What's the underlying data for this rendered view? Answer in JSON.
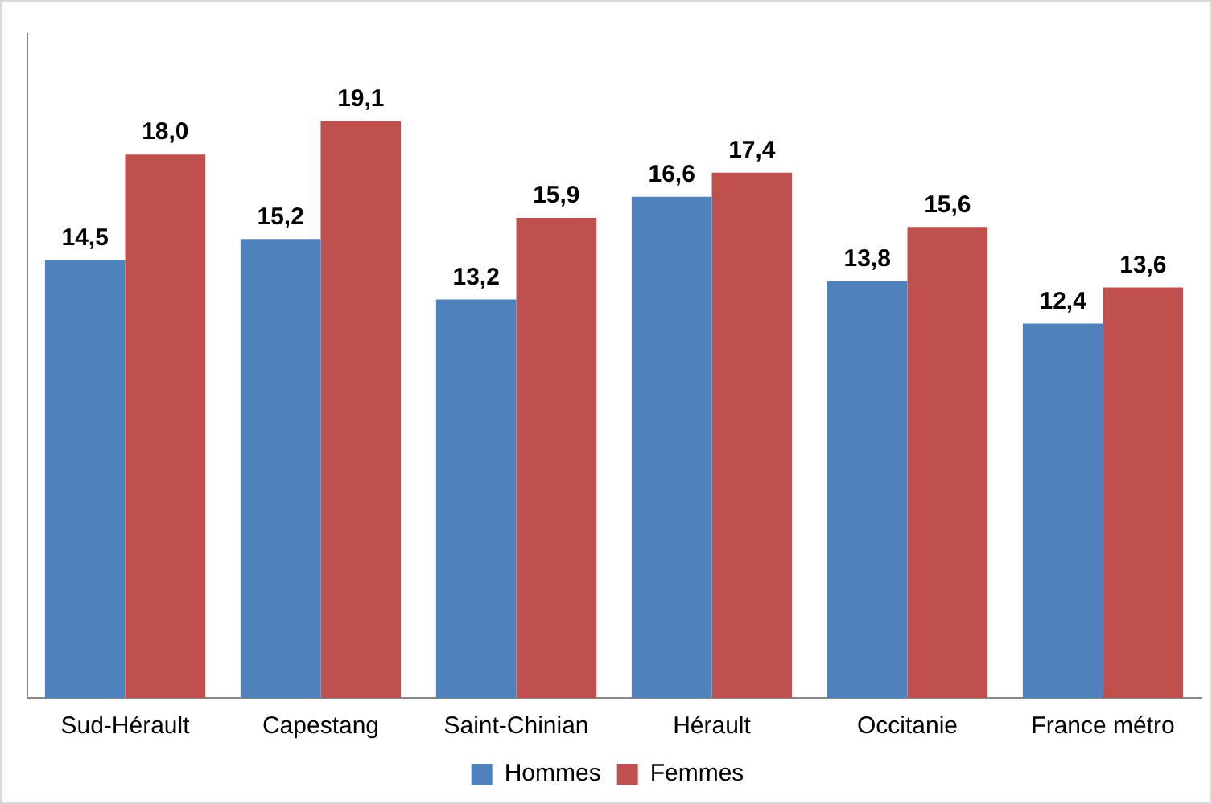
{
  "chart_data": {
    "type": "bar",
    "categories": [
      "Sud-Hérault",
      "Capestang",
      "Saint-Chinian",
      "Hérault",
      "Occitanie",
      "France métro"
    ],
    "series": [
      {
        "name": "Hommes",
        "color": "#4f81bd",
        "values": [
          14.5,
          15.2,
          13.2,
          16.6,
          13.8,
          12.4
        ],
        "value_labels": [
          "14,5",
          "15,2",
          "13,2",
          "16,6",
          "13,8",
          "12,4"
        ]
      },
      {
        "name": "Femmes",
        "color": "#c0504d",
        "values": [
          18.0,
          19.1,
          15.9,
          17.4,
          15.6,
          13.6
        ],
        "value_labels": [
          "18,0",
          "19,1",
          "15,9",
          "17,4",
          "15,6",
          "13,6"
        ]
      }
    ],
    "ylim": [
      0,
      22
    ],
    "tick_labels": "x",
    "grid": false,
    "legend": "bottom"
  }
}
